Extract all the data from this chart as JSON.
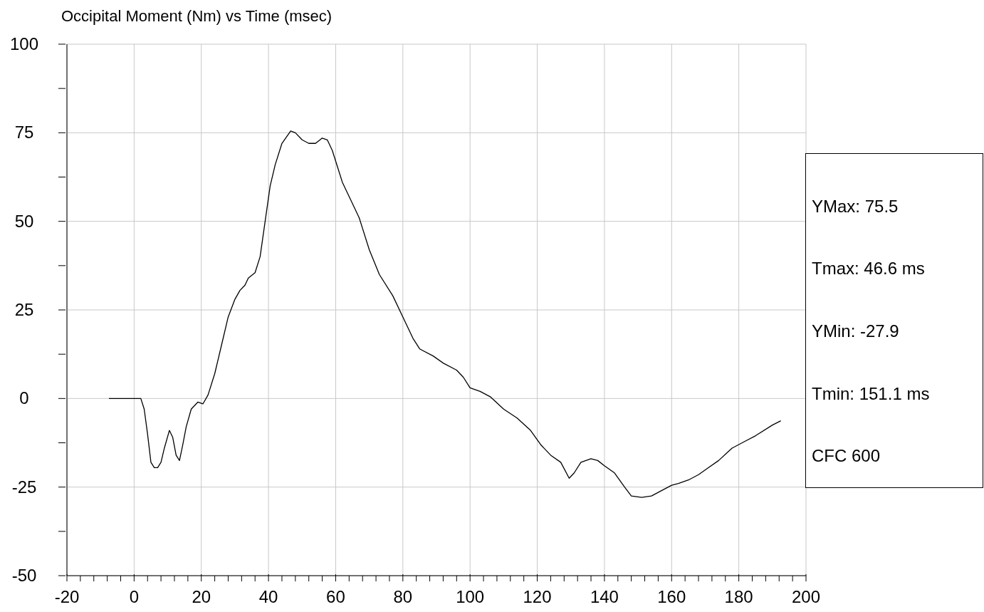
{
  "chart_data": {
    "type": "line",
    "title": "Occipital Moment (Nm) vs Time (msec)",
    "series": [
      {
        "color": "#000000",
        "x": [
          -7.5,
          0,
          2,
          3,
          4,
          5,
          6,
          7,
          8,
          9,
          10.5,
          11.5,
          12.5,
          13.5,
          14.5,
          15.5,
          17,
          19,
          20.5,
          22,
          24,
          26,
          28,
          30,
          31.5,
          33,
          34,
          36,
          37.5,
          39,
          40.5,
          42,
          44,
          46.6,
          48,
          50,
          52,
          54,
          56,
          57.5,
          59,
          62,
          65,
          67,
          70,
          73,
          77,
          80,
          83,
          85,
          89,
          92,
          96,
          98,
          100,
          103,
          106,
          110,
          114,
          118,
          121,
          124,
          127,
          129.5,
          131,
          133,
          136,
          138,
          140,
          143,
          146,
          148,
          151.1,
          154,
          157,
          160,
          162,
          165,
          168,
          171,
          174,
          178,
          182,
          185,
          190,
          192.5
        ],
        "values": [
          0,
          0,
          0,
          -3,
          -10,
          -18,
          -19.5,
          -19.5,
          -18,
          -14,
          -9,
          -11,
          -16,
          -17.5,
          -13,
          -8,
          -3,
          -1,
          -1.5,
          1,
          7,
          15,
          23,
          28,
          30.5,
          32,
          34,
          35.5,
          40,
          50,
          60,
          66,
          72,
          75.5,
          75,
          73,
          72,
          72,
          73.5,
          73,
          70,
          61,
          55,
          51,
          42,
          35,
          29,
          23,
          17,
          14,
          12,
          10,
          8,
          6,
          3,
          2,
          0.5,
          -3,
          -5.5,
          -9,
          -13,
          -16,
          -18,
          -22.5,
          -21,
          -18,
          -17,
          -17.5,
          -19,
          -21,
          -25,
          -27.5,
          -27.9,
          -27.5,
          -26,
          -24.5,
          -24,
          -23,
          -21.5,
          -19.5,
          -17.5,
          -14,
          -12,
          -10.5,
          -7.5,
          -6.3
        ]
      }
    ],
    "xlim": [
      -20,
      200
    ],
    "xticks": [
      -20,
      {
        "value": -16,
        "label": null
      },
      {
        "value": -12,
        "label": null
      },
      {
        "value": -8,
        "label": null
      },
      {
        "value": -4,
        "label": null
      },
      0,
      {
        "value": 4,
        "label": null
      },
      {
        "value": 8,
        "label": null
      },
      {
        "value": 12,
        "label": null
      },
      {
        "value": 16,
        "label": null
      },
      20,
      {
        "value": 24,
        "label": null
      },
      {
        "value": 28,
        "label": null
      },
      {
        "value": 32,
        "label": null
      },
      {
        "value": 36,
        "label": null
      },
      40,
      {
        "value": 44,
        "label": null
      },
      {
        "value": 48,
        "label": null
      },
      {
        "value": 52,
        "label": null
      },
      {
        "value": 56,
        "label": null
      },
      60,
      {
        "value": 64,
        "label": null
      },
      {
        "value": 68,
        "label": null
      },
      {
        "value": 72,
        "label": null
      },
      {
        "value": 76,
        "label": null
      },
      80,
      {
        "value": 84,
        "label": null
      },
      {
        "value": 88,
        "label": null
      },
      {
        "value": 92,
        "label": null
      },
      {
        "value": 96,
        "label": null
      },
      100,
      {
        "value": 104,
        "label": null
      },
      {
        "value": 108,
        "label": null
      },
      {
        "value": 112,
        "label": null
      },
      {
        "value": 116,
        "label": null
      },
      120,
      {
        "value": 124,
        "label": null
      },
      {
        "value": 128,
        "label": null
      },
      {
        "value": 132,
        "label": null
      },
      {
        "value": 136,
        "label": null
      },
      140,
      {
        "value": 144,
        "label": null
      },
      {
        "value": 148,
        "label": null
      },
      {
        "value": 152,
        "label": null
      },
      {
        "value": 156,
        "label": null
      },
      160,
      {
        "value": 164,
        "label": null
      },
      {
        "value": 168,
        "label": null
      },
      {
        "value": 172,
        "label": null
      },
      {
        "value": 176,
        "label": null
      },
      180,
      {
        "value": 184,
        "label": null
      },
      {
        "value": 188,
        "label": null
      },
      {
        "value": 192,
        "label": null
      },
      {
        "value": 196,
        "label": null
      },
      200
    ],
    "ylim": [
      -50,
      100
    ],
    "yticks": [
      -50,
      {
        "value": -37.5,
        "label": null
      },
      -25,
      {
        "value": -12.5,
        "label": null
      },
      0,
      {
        "value": 12.5,
        "label": null
      },
      25,
      {
        "value": 37.5,
        "label": null
      },
      50,
      {
        "value": 62.5,
        "label": null
      },
      75,
      {
        "value": 87.5,
        "label": null
      },
      100
    ],
    "grid": true,
    "marker": "none",
    "line_style": "solid",
    "annotations": [
      "YMax: 75.5",
      "Tmax: 46.6 ms",
      "YMin: -27.9",
      "Tmin: 151.1 ms",
      "CFC 600"
    ]
  }
}
